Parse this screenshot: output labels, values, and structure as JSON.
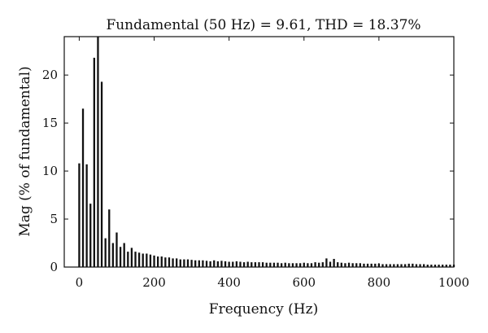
{
  "chart_data": {
    "type": "bar",
    "title": "Fundamental (50 Hz) = 9.61, THD = 18.37%",
    "xlabel": "Frequency (Hz)",
    "ylabel": "Mag (% of fundamental)",
    "xlim": [
      -40,
      1000
    ],
    "ylim": [
      0,
      24
    ],
    "xticks": [
      0,
      200,
      400,
      600,
      800,
      1000
    ],
    "yticks": [
      0,
      5,
      10,
      15,
      20
    ],
    "grid": false,
    "bar_width_hz": 5,
    "x": [
      0,
      10,
      20,
      30,
      40,
      50,
      60,
      70,
      80,
      90,
      100,
      110,
      120,
      130,
      140,
      150,
      160,
      170,
      180,
      190,
      200,
      210,
      220,
      230,
      240,
      250,
      260,
      270,
      280,
      290,
      300,
      310,
      320,
      330,
      340,
      350,
      360,
      370,
      380,
      390,
      400,
      410,
      420,
      430,
      440,
      450,
      460,
      470,
      480,
      490,
      500,
      510,
      520,
      530,
      540,
      550,
      560,
      570,
      580,
      590,
      600,
      610,
      620,
      630,
      640,
      650,
      660,
      670,
      680,
      690,
      700,
      710,
      720,
      730,
      740,
      750,
      760,
      770,
      780,
      790,
      800,
      810,
      820,
      830,
      840,
      850,
      860,
      870,
      880,
      890,
      900,
      910,
      920,
      930,
      940,
      950,
      960,
      970,
      980,
      990,
      1000
    ],
    "values": [
      10.8,
      16.5,
      10.7,
      6.6,
      21.8,
      24.0,
      19.3,
      3.0,
      6.0,
      2.5,
      3.6,
      2.1,
      2.5,
      1.6,
      2.0,
      1.6,
      1.5,
      1.4,
      1.4,
      1.3,
      1.2,
      1.1,
      1.1,
      1.0,
      1.0,
      0.9,
      0.9,
      0.8,
      0.8,
      0.8,
      0.75,
      0.7,
      0.7,
      0.7,
      0.65,
      0.6,
      0.7,
      0.6,
      0.65,
      0.6,
      0.55,
      0.55,
      0.6,
      0.55,
      0.5,
      0.55,
      0.5,
      0.5,
      0.5,
      0.5,
      0.45,
      0.45,
      0.45,
      0.45,
      0.4,
      0.45,
      0.4,
      0.4,
      0.4,
      0.4,
      0.45,
      0.4,
      0.4,
      0.5,
      0.45,
      0.5,
      0.9,
      0.55,
      0.85,
      0.5,
      0.45,
      0.4,
      0.45,
      0.4,
      0.4,
      0.4,
      0.35,
      0.35,
      0.35,
      0.35,
      0.35,
      0.3,
      0.3,
      0.3,
      0.3,
      0.3,
      0.3,
      0.3,
      0.35,
      0.35,
      0.3,
      0.3,
      0.3,
      0.25,
      0.25,
      0.25,
      0.25,
      0.25,
      0.25,
      0.25,
      0.25
    ]
  }
}
